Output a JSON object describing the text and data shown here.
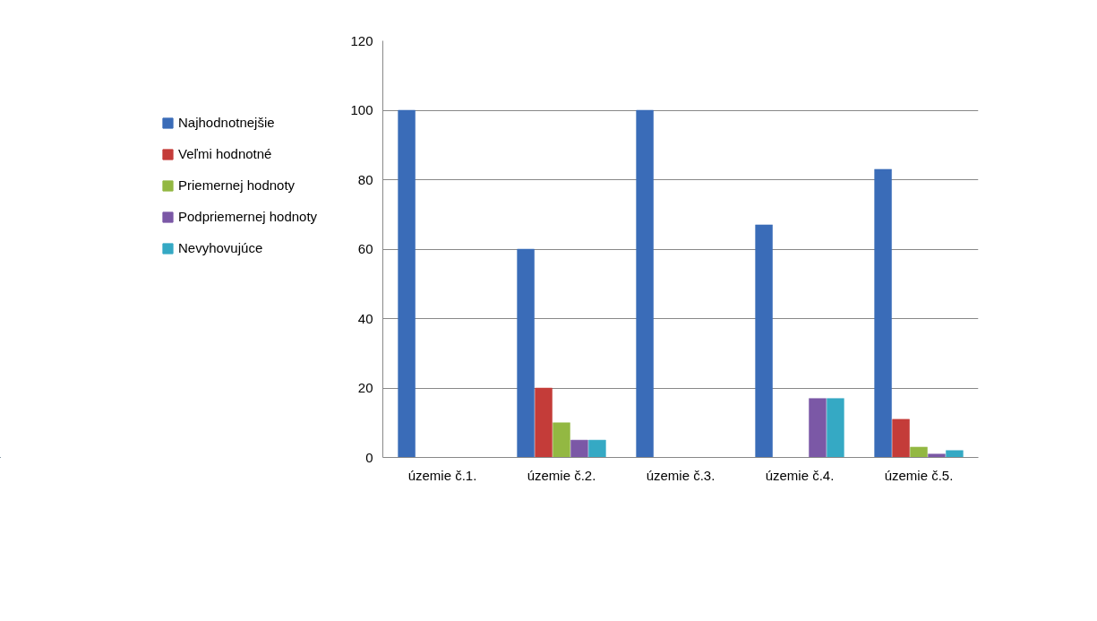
{
  "chart_data": {
    "type": "bar",
    "categories": [
      "územie č.1.",
      "územie č.2.",
      "územie č.3.",
      "územie č.4.",
      "územie č.5."
    ],
    "series": [
      {
        "name": "Najhodnotnejšie",
        "color": "#3a6cb8",
        "values": [
          100,
          60,
          100,
          67,
          83
        ]
      },
      {
        "name": "Veľmi hodnotné",
        "color": "#c43c39",
        "values": [
          0,
          20,
          0,
          0,
          11
        ]
      },
      {
        "name": "Priemernej hodnoty",
        "color": "#93b842",
        "values": [
          0,
          10,
          0,
          0,
          3
        ]
      },
      {
        "name": "Podpriemernej hodnoty",
        "color": "#7b58a6",
        "values": [
          0,
          5,
          0,
          17,
          1
        ]
      },
      {
        "name": "Nevyhovujúce",
        "color": "#35a9c4",
        "values": [
          0,
          5,
          0,
          17,
          2
        ]
      }
    ],
    "ylim": [
      0,
      120
    ],
    "yticks": [
      0,
      20,
      40,
      60,
      80,
      100,
      120
    ],
    "grid": "y",
    "legend": "left"
  }
}
